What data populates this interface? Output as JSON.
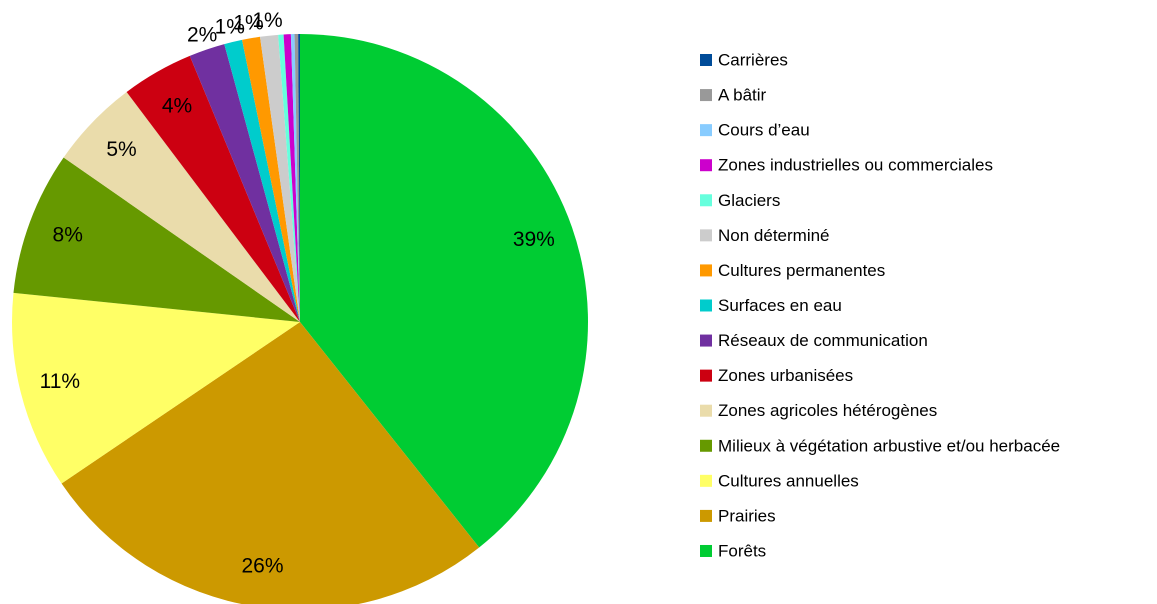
{
  "chart_data": {
    "type": "pie",
    "categories": [
      "Forêts",
      "Prairies",
      "Cultures annuelles",
      "Milieux à végétation arbustive et/ou herbacée",
      "Zones agricoles hétérogènes",
      "Zones urbanisées",
      "Réseaux de communication",
      "Surfaces en eau",
      "Cultures permanentes",
      "Non déterminé",
      "Glaciers",
      "Zones industrielles ou commerciales",
      "Cours d’eau",
      "A bâtir",
      "Carrières"
    ],
    "values": [
      39,
      26,
      11,
      8,
      5,
      4,
      2,
      1,
      1,
      1,
      0.3,
      0.4,
      0.2,
      0.2,
      0.1
    ],
    "value_labels": [
      "39%",
      "26%",
      "11%",
      "8%",
      "5%",
      "4%",
      "2%",
      "1%",
      "1%",
      "1%",
      null,
      null,
      null,
      null,
      null
    ],
    "colors": [
      "#00cc33",
      "#cc9900",
      "#ffff66",
      "#669900",
      "#eadcab",
      "#cc0011",
      "#7030a0",
      "#00cccc",
      "#ff9900",
      "#cccccc",
      "#66ffdd",
      "#cc00cc",
      "#88ccff",
      "#999999",
      "#004c99"
    ],
    "legend": "right"
  }
}
